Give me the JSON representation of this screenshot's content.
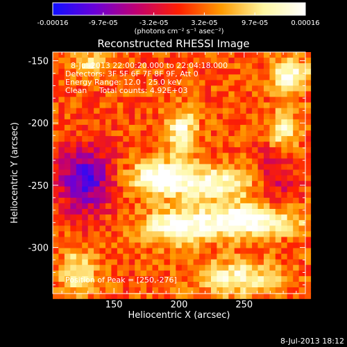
{
  "colorbar": {
    "ticks": [
      "-0.00016",
      "-9.7e-05",
      "-3.2e-05",
      "3.2e-05",
      "9.7e-05",
      "0.00016"
    ],
    "units": "(photons cm⁻² s⁻¹ asec⁻²)",
    "colors": [
      "#1010ff",
      "#6a00d8",
      "#c20070",
      "#ff2000",
      "#ff9a00",
      "#fff7a0",
      "#ffffff"
    ]
  },
  "chart_data": {
    "type": "heatmap",
    "title": "Reconstructed RHESSI Image",
    "xlabel": "Heliocentric X (arcsec)",
    "ylabel": "Heliocentric Y (arcsec)",
    "xlim": [
      103,
      297
    ],
    "ylim": [
      -337,
      -143
    ],
    "xticks": [
      150,
      200,
      250
    ],
    "yticks": [
      -150,
      -200,
      -250,
      -300
    ],
    "value_range": [
      -0.00016,
      0.00016
    ],
    "sources": [
      {
        "x": 250,
        "y": -276,
        "peak": 0.00016,
        "sx": 28,
        "sy": 9
      },
      {
        "x": 195,
        "y": -282,
        "peak": 0.00013,
        "sx": 18,
        "sy": 10
      },
      {
        "x": 180,
        "y": -241,
        "peak": 0.00012,
        "sx": 14,
        "sy": 10
      },
      {
        "x": 222,
        "y": -246,
        "peak": 0.00012,
        "sx": 26,
        "sy": 10
      },
      {
        "x": 200,
        "y": -205,
        "peak": 0.00012,
        "sx": 8,
        "sy": 13
      },
      {
        "x": 283,
        "y": -160,
        "peak": 0.00013,
        "sx": 10,
        "sy": 9
      },
      {
        "x": 278,
        "y": -205,
        "peak": 0.00011,
        "sx": 8,
        "sy": 12
      },
      {
        "x": 243,
        "y": -322,
        "peak": 0.00011,
        "sx": 22,
        "sy": 10
      },
      {
        "x": 120,
        "y": -318,
        "peak": 0.0001,
        "sx": 10,
        "sy": 12
      },
      {
        "x": 130,
        "y": -150,
        "peak": 9e-05,
        "sx": 9,
        "sy": 6
      },
      {
        "x": 125,
        "y": -243,
        "peak": -0.00014,
        "sx": 14,
        "sy": 18
      },
      {
        "x": 272,
        "y": -242,
        "peak": -6e-05,
        "sx": 12,
        "sy": 20
      }
    ],
    "annotations": {
      "time_range": "8-Jul-2013 22:00:20.000 to 22:04:18.000",
      "detectors": "Detectors: 3F 5F 6F 7F 8F 9F, Att 0",
      "energy": "Energy Range: 12.0 - 25.0 keV",
      "algorithm": "Clean     Total counts: 4.92E+03",
      "peak": "Position of Peak = [250,-276]"
    }
  },
  "footer": {
    "date": "8-Jul-2013 18:12"
  }
}
